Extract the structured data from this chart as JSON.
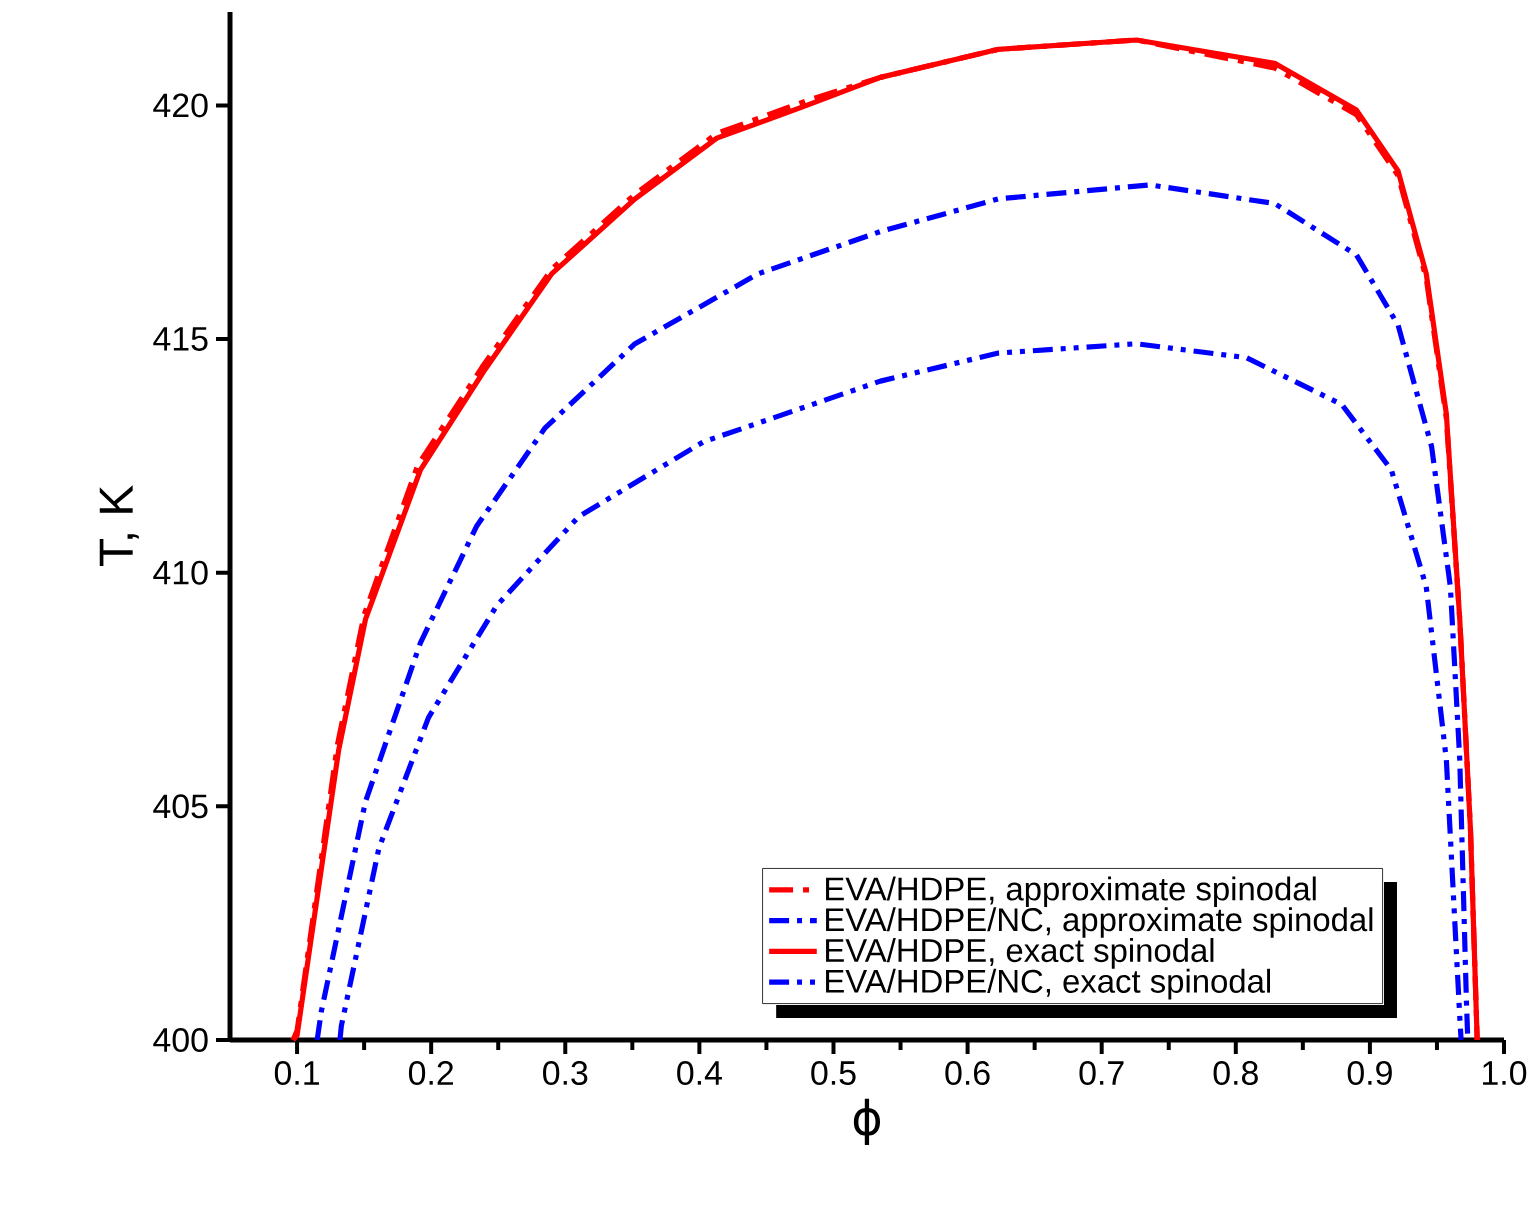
{
  "chart_data": {
    "type": "line",
    "xlabel": "ϕ",
    "ylabel": "T, K",
    "xlim": [
      0.05,
      1.0
    ],
    "ylim": [
      400,
      422
    ],
    "xticks": [
      0.1,
      0.2,
      0.3,
      0.4,
      0.5,
      0.6,
      0.7,
      0.8,
      0.9,
      {
        "value": 1.0,
        "label": "1.0"
      }
    ],
    "yticks": [
      400,
      405,
      410,
      415,
      420
    ],
    "legend": "bottom right",
    "grid": false,
    "series": [
      {
        "name": "EVA/HDPE, approximate spinodal",
        "color": "#ff0000",
        "line_style": "dashed",
        "x": [
          0.097,
          0.1,
          0.13,
          0.15,
          0.19,
          0.238,
          0.29,
          0.352,
          0.413,
          0.48,
          0.535,
          0.623,
          0.726,
          0.829,
          0.89,
          0.921,
          0.942,
          0.957,
          0.967,
          0.975,
          0.98
        ],
        "values": [
          400,
          400.2,
          406.3,
          409.1,
          412.3,
          414.4,
          416.5,
          418.1,
          419.4,
          420.1,
          420.6,
          421.2,
          421.4,
          420.8,
          419.8,
          418.5,
          416.3,
          413.3,
          409.0,
          404.5,
          400
        ]
      },
      {
        "name": "EVA/HDPE/NC, approximate spinodal",
        "color": "#0000ff",
        "line_style": "dashdot",
        "x": [
          0.115,
          0.118,
          0.151,
          0.192,
          0.234,
          0.285,
          0.352,
          0.444,
          0.535,
          0.623,
          0.736,
          0.829,
          0.89,
          0.921,
          0.946,
          0.96,
          0.967,
          0.972,
          0.973
        ],
        "values": [
          400,
          400.6,
          405.1,
          408.5,
          411.0,
          413.1,
          414.9,
          416.4,
          417.3,
          418.0,
          418.3,
          417.9,
          416.8,
          415.3,
          412.7,
          409.7,
          406.0,
          400.8,
          400
        ]
      },
      {
        "name": "EVA/HDPE, exact spinodal",
        "color": "#ff0000",
        "line_style": "solid",
        "x": [
          0.097,
          0.1,
          0.131,
          0.151,
          0.192,
          0.239,
          0.29,
          0.352,
          0.413,
          0.48,
          0.535,
          0.623,
          0.726,
          0.829,
          0.89,
          0.921,
          0.942,
          0.957,
          0.967,
          0.975,
          0.98
        ],
        "values": [
          400,
          400.1,
          406.2,
          409.0,
          412.2,
          414.3,
          416.4,
          418.0,
          419.3,
          420.0,
          420.6,
          421.2,
          421.4,
          420.9,
          419.9,
          418.6,
          416.4,
          413.4,
          409.0,
          404.5,
          400
        ]
      },
      {
        "name": "EVA/HDPE/NC, exact spinodal",
        "color": "#0000ff",
        "line_style": "dashdotdot",
        "x": [
          0.132,
          0.133,
          0.161,
          0.198,
          0.249,
          0.31,
          0.403,
          0.535,
          0.623,
          0.726,
          0.808,
          0.879,
          0.916,
          0.942,
          0.957,
          0.967,
          0.968
        ],
        "values": [
          400,
          400.3,
          404.1,
          406.9,
          409.3,
          411.2,
          412.8,
          414.1,
          414.7,
          414.9,
          414.6,
          413.6,
          412.2,
          409.7,
          406.0,
          400.5,
          400
        ]
      }
    ]
  }
}
